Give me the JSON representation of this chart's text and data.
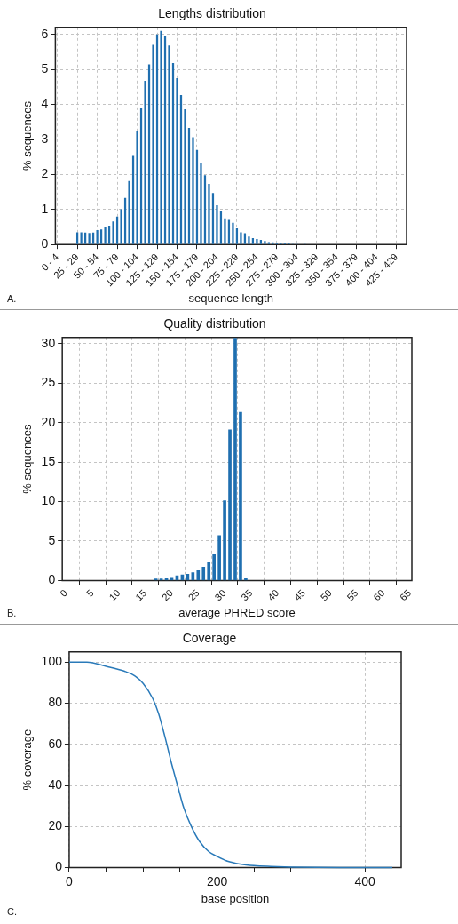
{
  "chart_data": [
    {
      "type": "bar",
      "title": "Lengths distribution",
      "xlabel": "sequence length",
      "ylabel": "% sequences",
      "annotations": [
        "A."
      ],
      "color": "#1f6fb0",
      "grid": true,
      "ylim": [
        0,
        6.2
      ],
      "yticks": [
        0,
        1,
        2,
        3,
        4,
        5,
        6
      ],
      "categories": [
        "0 - 4",
        null,
        null,
        null,
        null,
        "25 - 29",
        null,
        null,
        null,
        null,
        "50 - 54",
        null,
        null,
        null,
        null,
        "75 - 79",
        null,
        null,
        null,
        null,
        "100 - 104",
        null,
        null,
        null,
        null,
        "125 - 129",
        null,
        null,
        null,
        null,
        "150 - 154",
        null,
        null,
        null,
        null,
        "175 - 179",
        null,
        null,
        null,
        null,
        "200 - 204",
        null,
        null,
        null,
        null,
        "225 - 229",
        null,
        null,
        null,
        null,
        "250 - 254",
        null,
        null,
        null,
        null,
        "275 - 279",
        null,
        null,
        null,
        null,
        "300 - 304",
        null,
        null,
        null,
        null,
        "325 - 329",
        null,
        null,
        null,
        null,
        "350 - 354",
        null,
        null,
        null,
        null,
        "375 - 379",
        null,
        null,
        null,
        null,
        "400 - 404",
        null,
        null,
        null,
        null,
        "425 - 429",
        null,
        null
      ],
      "values": [
        0,
        0,
        0,
        0,
        0,
        0.35,
        0.35,
        0.34,
        0.33,
        0.34,
        0.41,
        0.43,
        0.5,
        0.54,
        0.66,
        0.8,
        1.01,
        1.33,
        1.81,
        2.53,
        3.24,
        3.89,
        4.67,
        5.14,
        5.7,
        6.0,
        6.1,
        5.94,
        5.68,
        5.18,
        4.75,
        4.27,
        3.86,
        3.33,
        3.06,
        2.7,
        2.33,
        1.98,
        1.73,
        1.47,
        1.12,
        0.96,
        0.75,
        0.7,
        0.62,
        0.46,
        0.35,
        0.32,
        0.23,
        0.18,
        0.16,
        0.13,
        0.1,
        0.07,
        0.06,
        0.04,
        0.04,
        0.03,
        0.03,
        0.02,
        0.02,
        0.01,
        0.02,
        0,
        0,
        0,
        0,
        0,
        0,
        0,
        0,
        0,
        0,
        0,
        0,
        0,
        0,
        0,
        0,
        0,
        0,
        0,
        0,
        0,
        0,
        0,
        0,
        0
      ]
    },
    {
      "type": "bar",
      "title": "Quality distribution",
      "xlabel": "average PHRED score",
      "ylabel": "% sequences",
      "annotations": [
        "B."
      ],
      "color": "#1f6fb0",
      "grid": true,
      "xlim": [
        -0.7,
        65.4
      ],
      "xticks": [
        0,
        5,
        10,
        15,
        20,
        25,
        30,
        35,
        40,
        45,
        50,
        55,
        60,
        65
      ],
      "ylim": [
        0,
        30.8
      ],
      "yticks": [
        0,
        5,
        10,
        15,
        20,
        25,
        30
      ],
      "x": [
        17,
        18,
        19,
        20,
        21,
        22,
        23,
        24,
        25,
        26,
        27,
        28,
        29,
        30,
        31,
        32,
        33,
        34
      ],
      "values": [
        0.2,
        0.2,
        0.3,
        0.4,
        0.6,
        0.7,
        0.8,
        1.0,
        1.3,
        1.7,
        2.3,
        3.4,
        5.7,
        10.1,
        19.1,
        30.7,
        21.3,
        0.3
      ]
    },
    {
      "type": "line",
      "title": "Coverage",
      "xlabel": "base position",
      "ylabel": "% coverage",
      "annotations": [
        "C."
      ],
      "color": "#2a7ab9",
      "grid": true,
      "marker": "none",
      "xlim": [
        0,
        449
      ],
      "xticks": [
        0,
        {
          "value": 50,
          "label": null
        },
        {
          "value": 100,
          "label": null
        },
        {
          "value": 150,
          "label": null
        },
        200,
        {
          "value": 250,
          "label": null
        },
        {
          "value": 300,
          "label": null
        },
        {
          "value": 350,
          "label": null
        },
        400
      ],
      "ylim": [
        0,
        105
      ],
      "yticks": [
        0,
        20,
        40,
        60,
        80,
        100
      ],
      "x": [
        0,
        24,
        50,
        75,
        88,
        100,
        113,
        121,
        130,
        138,
        147,
        155,
        165,
        176,
        189,
        200,
        214,
        231,
        250,
        273,
        300,
        336,
        378,
        437
      ],
      "values": [
        100,
        100,
        98,
        95.6,
        93.5,
        89.7,
        82.3,
        74.9,
        63,
        51.3,
        39.4,
        29.1,
        20.2,
        12.9,
        7.7,
        5.5,
        3.2,
        1.8,
        1.0,
        0.6,
        0.3,
        0.1,
        0,
        0
      ]
    }
  ]
}
